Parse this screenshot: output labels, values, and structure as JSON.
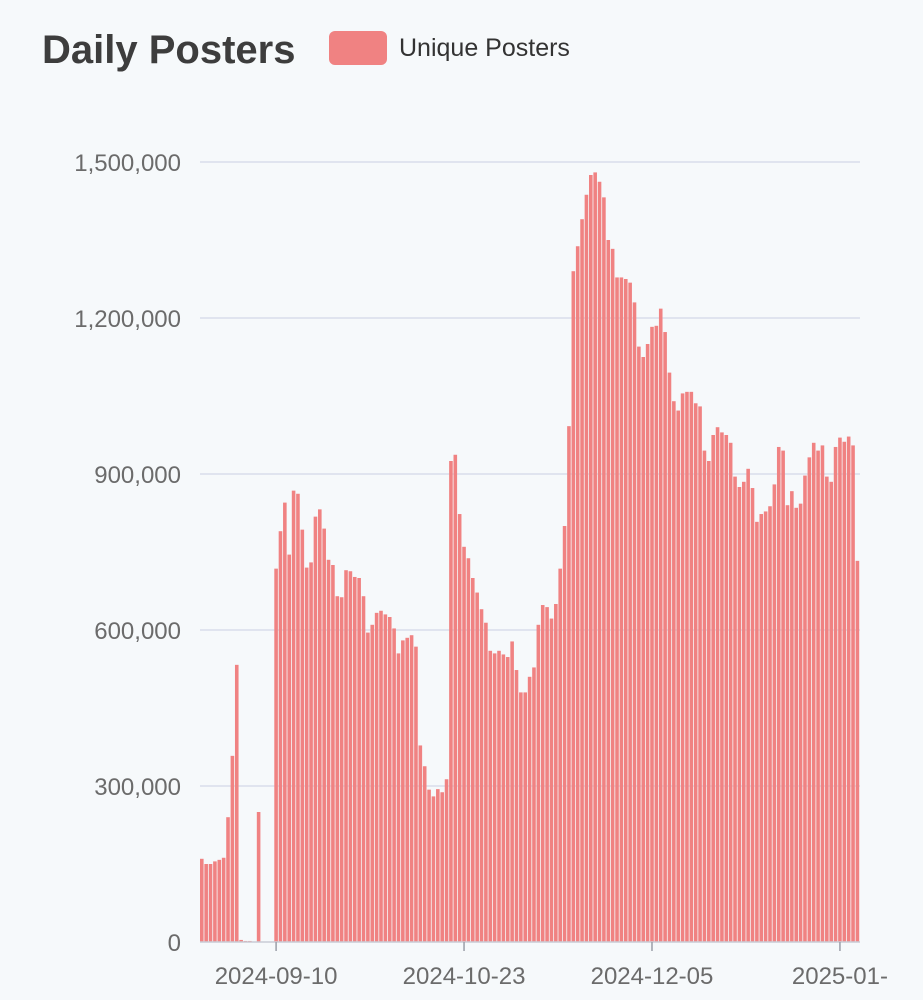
{
  "chart_data": {
    "type": "bar",
    "title": "Daily Posters",
    "xlabel": "",
    "ylabel": "",
    "series": [
      {
        "name": "Unique Posters",
        "color": "#f08282",
        "values": [
          160000,
          150000,
          150000,
          155000,
          158000,
          162000,
          240000,
          358000,
          533000,
          4000,
          2000,
          2000,
          0,
          250000,
          0,
          0,
          0,
          718000,
          790000,
          845000,
          745000,
          868000,
          862000,
          793000,
          720000,
          730000,
          818000,
          832000,
          795000,
          735000,
          725000,
          665000,
          663000,
          715000,
          713000,
          702000,
          700000,
          665000,
          595000,
          610000,
          633000,
          637000,
          630000,
          625000,
          603000,
          555000,
          580000,
          585000,
          590000,
          568000,
          378000,
          338000,
          293000,
          280000,
          294000,
          288000,
          313000,
          925000,
          937000,
          823000,
          760000,
          738000,
          700000,
          672000,
          640000,
          614000,
          560000,
          555000,
          560000,
          553000,
          548000,
          578000,
          523000,
          480000,
          480000,
          510000,
          528000,
          610000,
          648000,
          644000,
          622000,
          650000,
          718000,
          800000,
          992000,
          1290000,
          1338000,
          1390000,
          1437000,
          1475000,
          1480000,
          1462000,
          1432000,
          1350000,
          1333000,
          1278000,
          1278000,
          1275000,
          1268000,
          1230000,
          1145000,
          1125000,
          1150000,
          1183000,
          1185000,
          1218000,
          1173000,
          1095000,
          1040000,
          1022000,
          1055000,
          1058000,
          1058000,
          1036000,
          1030000,
          945000,
          925000,
          975000,
          990000,
          980000,
          975000,
          960000,
          895000,
          875000,
          885000,
          910000,
          873000,
          808000,
          823000,
          828000,
          838000,
          880000,
          952000,
          945000,
          840000,
          867000,
          835000,
          843000,
          897000,
          932000,
          960000,
          945000,
          955000,
          895000,
          885000,
          952000,
          970000,
          962000,
          972000,
          955000,
          733000
        ]
      }
    ],
    "x_tick_labels": [
      "2024-09-10",
      "2024-10-23",
      "2024-12-05",
      "2025-01-"
    ],
    "x_tick_index": [
      17,
      60,
      103,
      146
    ],
    "yticks": [
      0,
      300000,
      600000,
      900000,
      1200000,
      1500000
    ],
    "ytick_labels": [
      "0",
      "300,000",
      "600,000",
      "900,000",
      "1,200,000",
      "1,500,000"
    ],
    "ylim": [
      0,
      1500000
    ],
    "grid": true,
    "legend_position": "top"
  }
}
